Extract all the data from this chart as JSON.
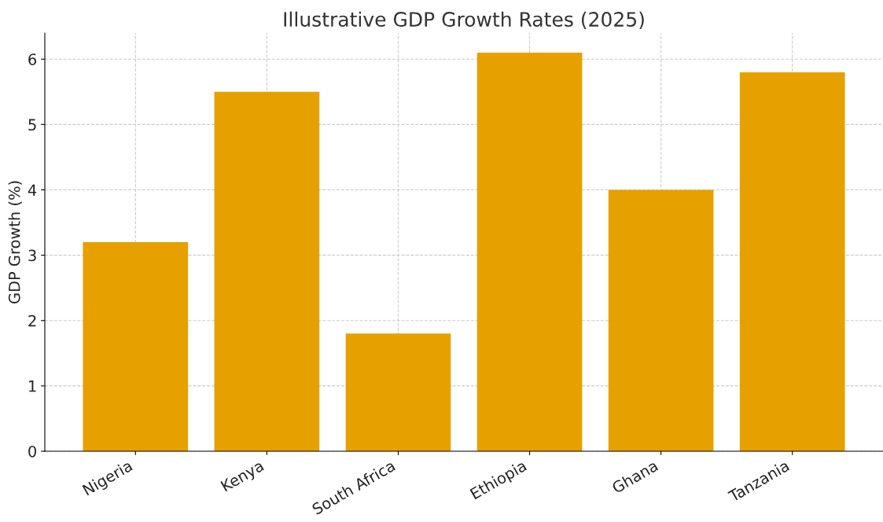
{
  "chart_data": {
    "type": "bar",
    "title": "Illustrative GDP Growth Rates (2025)",
    "ylabel": "GDP Growth (%)",
    "categories": [
      "Nigeria",
      "Kenya",
      "South Africa",
      "Ethiopia",
      "Ghana",
      "Tanzania"
    ],
    "values": [
      3.2,
      5.5,
      1.8,
      6.1,
      4.0,
      5.8
    ],
    "color": "#e6a000",
    "ylim": [
      0,
      6.4
    ],
    "yticks": [
      0,
      1,
      2,
      3,
      4,
      5,
      6
    ],
    "grid": true
  }
}
